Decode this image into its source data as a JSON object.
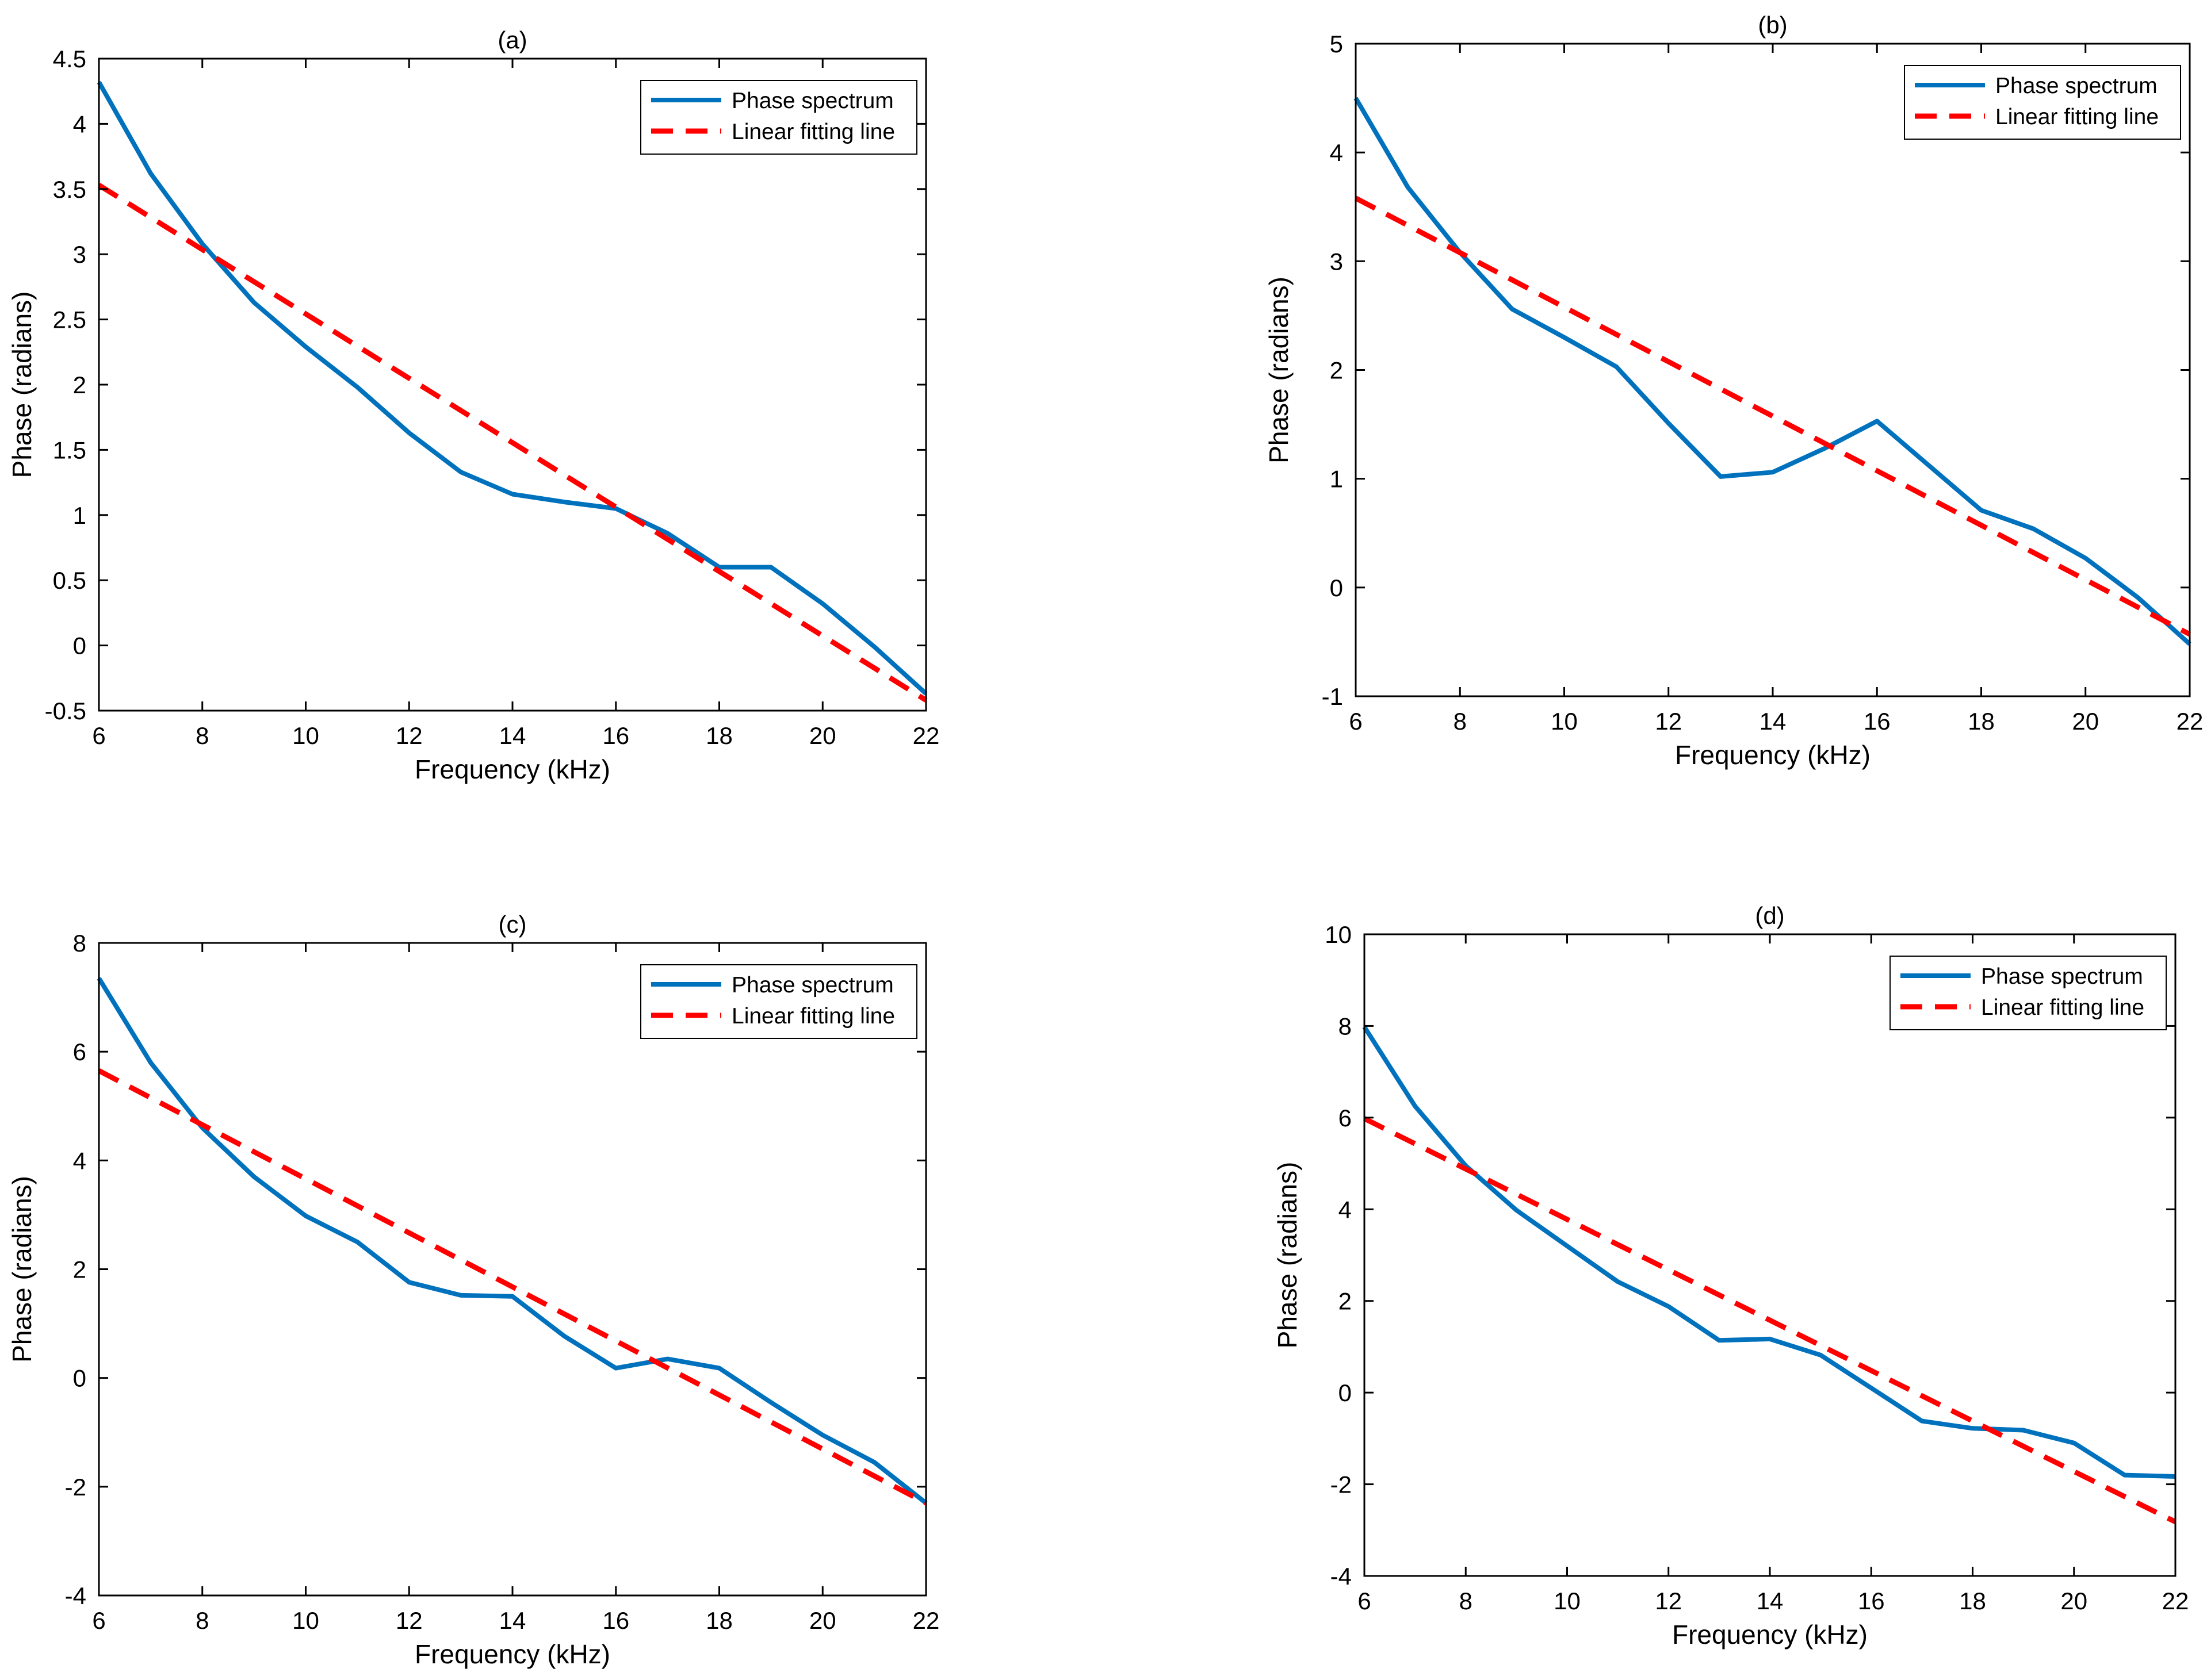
{
  "chart_data": [
    {
      "type": "line",
      "title": "(a)",
      "xlabel": "Frequency (kHz)",
      "ylabel": "Phase (radians)",
      "xlim": [
        6,
        22
      ],
      "ylim": [
        -0.5,
        4.5
      ],
      "xticks": [
        6,
        8,
        10,
        12,
        14,
        16,
        18,
        20,
        22
      ],
      "yticks": [
        -0.5,
        0,
        0.5,
        1,
        1.5,
        2,
        2.5,
        3,
        3.5,
        4,
        4.5
      ],
      "ytick_labels": [
        "-0.5",
        "0",
        "0.5",
        "1",
        "1.5",
        "2",
        "2.5",
        "3",
        "3.5",
        "4",
        "4.5"
      ],
      "legend_position": "top-right",
      "series": [
        {
          "name": "Phase spectrum",
          "style": "solid",
          "color": "#0072BD",
          "x": [
            6,
            7,
            8,
            9,
            10,
            11,
            12,
            13,
            14,
            15,
            16,
            17,
            18,
            19,
            20,
            21,
            22
          ],
          "y": [
            4.32,
            3.62,
            3.08,
            2.63,
            2.29,
            1.98,
            1.63,
            1.33,
            1.16,
            1.1,
            1.05,
            0.86,
            0.6,
            0.6,
            0.32,
            -0.01,
            -0.37
          ]
        },
        {
          "name": "Linear fitting line",
          "style": "dashed",
          "color": "#FF0000",
          "x": [
            6,
            22
          ],
          "y": [
            3.53,
            -0.42
          ]
        }
      ]
    },
    {
      "type": "line",
      "title": "(b)",
      "xlabel": "Frequency (kHz)",
      "ylabel": "Phase (radians)",
      "xlim": [
        6,
        22
      ],
      "ylim": [
        -1,
        5
      ],
      "xticks": [
        6,
        8,
        10,
        12,
        14,
        16,
        18,
        20,
        22
      ],
      "yticks": [
        -1,
        0,
        1,
        2,
        3,
        4,
        5
      ],
      "ytick_labels": [
        "-1",
        "0",
        "1",
        "2",
        "3",
        "4",
        "5"
      ],
      "legend_position": "top-right",
      "series": [
        {
          "name": "Phase spectrum",
          "style": "solid",
          "color": "#0072BD",
          "x": [
            6,
            7,
            8,
            9,
            10,
            11,
            12,
            13,
            14,
            15,
            16,
            17,
            18,
            19,
            20,
            21,
            22
          ],
          "y": [
            4.5,
            3.68,
            3.08,
            2.56,
            2.3,
            2.03,
            1.51,
            1.02,
            1.06,
            1.28,
            1.53,
            1.12,
            0.71,
            0.54,
            0.27,
            -0.09,
            -0.52
          ]
        },
        {
          "name": "Linear fitting line",
          "style": "dashed",
          "color": "#FF0000",
          "x": [
            6,
            22
          ],
          "y": [
            3.58,
            -0.43
          ]
        }
      ]
    },
    {
      "type": "line",
      "title": "(c)",
      "xlabel": "Frequency (kHz)",
      "ylabel": "Phase (radians)",
      "xlim": [
        6,
        22
      ],
      "ylim": [
        -4,
        8
      ],
      "xticks": [
        6,
        8,
        10,
        12,
        14,
        16,
        18,
        20,
        22
      ],
      "yticks": [
        -4,
        -2,
        0,
        2,
        4,
        6,
        8
      ],
      "ytick_labels": [
        "-4",
        "-2",
        "0",
        "2",
        "4",
        "6",
        "8"
      ],
      "legend_position": "top-right",
      "series": [
        {
          "name": "Phase spectrum",
          "style": "solid",
          "color": "#0072BD",
          "x": [
            6,
            7,
            8,
            9,
            10,
            11,
            12,
            13,
            14,
            15,
            16,
            17,
            18,
            19,
            20,
            21,
            22
          ],
          "y": [
            7.35,
            5.8,
            4.6,
            3.7,
            2.98,
            2.5,
            1.76,
            1.52,
            1.5,
            0.77,
            0.18,
            0.35,
            0.18,
            -0.45,
            -1.05,
            -1.55,
            -2.3
          ]
        },
        {
          "name": "Linear fitting line",
          "style": "dashed",
          "color": "#FF0000",
          "x": [
            6,
            22
          ],
          "y": [
            5.65,
            -2.3
          ]
        }
      ]
    },
    {
      "type": "line",
      "title": "(d)",
      "xlabel": "Frequency (kHz)",
      "ylabel": "Phase (radians)",
      "xlim": [
        6,
        22
      ],
      "ylim": [
        -4,
        10
      ],
      "xticks": [
        6,
        8,
        10,
        12,
        14,
        16,
        18,
        20,
        22
      ],
      "yticks": [
        -4,
        -2,
        0,
        2,
        4,
        6,
        8,
        10
      ],
      "ytick_labels": [
        "-4",
        "-2",
        "0",
        "2",
        "4",
        "6",
        "8",
        "10"
      ],
      "legend_position": "top-right",
      "series": [
        {
          "name": "Phase spectrum",
          "style": "solid",
          "color": "#0072BD",
          "x": [
            6,
            7,
            8,
            9,
            10,
            11,
            12,
            13,
            14,
            15,
            16,
            17,
            18,
            19,
            20,
            21,
            22
          ],
          "y": [
            7.98,
            6.25,
            4.95,
            3.98,
            3.2,
            2.42,
            1.88,
            1.14,
            1.17,
            0.82,
            0.1,
            -0.62,
            -0.78,
            -0.82,
            -1.1,
            -1.8,
            -1.83
          ]
        },
        {
          "name": "Linear fitting line",
          "style": "dashed",
          "color": "#FF0000",
          "x": [
            6,
            22
          ],
          "y": [
            5.98,
            -2.82
          ]
        }
      ]
    }
  ]
}
